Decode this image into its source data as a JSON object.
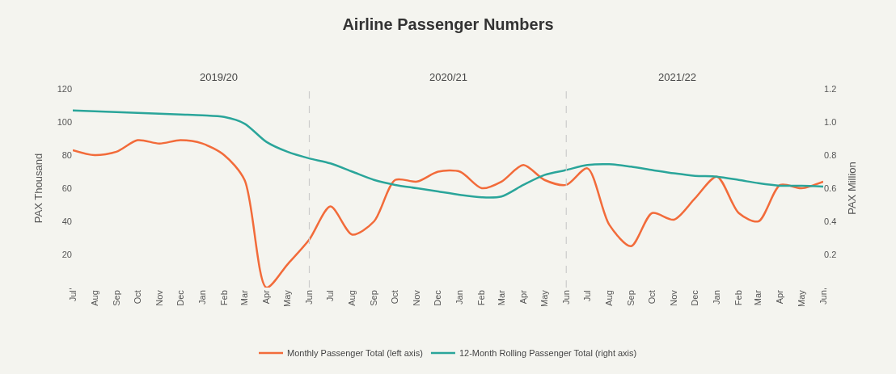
{
  "chart_data": {
    "type": "line",
    "title": "Airline Passenger Numbers",
    "ylabel": "PAX Thousand",
    "y2label": "PAX Million",
    "annotations": [
      "2019/20",
      "2020/21",
      "2021/22"
    ],
    "x": [
      "2019-07",
      "2019-08",
      "2019-09",
      "2019-10",
      "2019-11",
      "2019-12",
      "2020-01",
      "2020-02",
      "2020-03",
      "2020-04",
      "2020-05",
      "2020-06",
      "2020-07",
      "2020-08",
      "2020-09",
      "2020-10",
      "2020-11",
      "2020-12",
      "2021-01",
      "2021-02",
      "2021-03",
      "2021-04",
      "2021-05",
      "2021-06",
      "2021-07",
      "2021-08",
      "2021-09",
      "2021-10",
      "2021-11",
      "2021-12",
      "2022-01",
      "2022-02",
      "2022-03",
      "2022-04",
      "2022-05",
      "2022-06"
    ],
    "series": [
      {
        "name": "Monthly Passenger Total (left axis)",
        "color": "#f26b3a",
        "values": [
          83,
          80,
          82,
          89,
          87,
          89,
          87,
          80,
          65,
          0,
          14,
          29,
          49,
          32,
          40,
          65,
          64,
          70,
          70,
          60,
          64,
          74,
          65,
          62,
          72,
          38,
          25,
          45,
          41,
          54,
          67,
          45,
          40,
          62,
          60,
          64
        ]
      },
      {
        "name": "12-Month Rolling Passenger Total (right axis)",
        "color": "#2aa59a",
        "axis": "y2",
        "values": [
          1.07,
          1.065,
          1.06,
          1.055,
          1.05,
          1.045,
          1.04,
          1.03,
          0.99,
          0.88,
          0.82,
          0.78,
          0.75,
          0.7,
          0.65,
          0.62,
          0.6,
          0.58,
          0.56,
          0.545,
          0.55,
          0.62,
          0.68,
          0.71,
          0.74,
          0.745,
          0.73,
          0.71,
          0.69,
          0.675,
          0.67,
          0.65,
          0.63,
          0.615,
          0.615,
          0.61
        ]
      }
    ],
    "xlim": [
      "2019-07",
      "2022-06"
    ],
    "xticks": [
      {
        "value": "2019-07",
        "label": "Jul"
      },
      {
        "value": "2019-08",
        "label": "Aug"
      },
      {
        "value": "2019-09",
        "label": "Sep"
      },
      {
        "value": "2019-10",
        "label": "Oct"
      },
      {
        "value": "2019-11",
        "label": "Nov"
      },
      {
        "value": "2019-12",
        "label": "Dec"
      },
      {
        "value": "2020-01",
        "label": "Jan"
      },
      {
        "value": "2020-02",
        "label": "Feb"
      },
      {
        "value": "2020-03",
        "label": "Mar"
      },
      {
        "value": "2020-04",
        "label": "Apr"
      },
      {
        "value": "2020-05",
        "label": "May"
      },
      {
        "value": "2020-06",
        "label": "Jun"
      },
      {
        "value": "2020-07",
        "label": "Jul"
      },
      {
        "value": "2020-08",
        "label": "Aug"
      },
      {
        "value": "2020-09",
        "label": "Sep"
      },
      {
        "value": "2020-10",
        "label": "Oct"
      },
      {
        "value": "2020-11",
        "label": "Nov"
      },
      {
        "value": "2020-12",
        "label": "Dec"
      },
      {
        "value": "2021-01",
        "label": "Jan"
      },
      {
        "value": "2021-02",
        "label": "Feb"
      },
      {
        "value": "2021-03",
        "label": "Mar"
      },
      {
        "value": "2021-04",
        "label": "Apr"
      },
      {
        "value": "2021-05",
        "label": "May"
      },
      {
        "value": "2021-06",
        "label": "Jun"
      },
      {
        "value": "2021-07",
        "label": "Jul"
      },
      {
        "value": "2021-08",
        "label": "Aug"
      },
      {
        "value": "2021-09",
        "label": "Sep"
      },
      {
        "value": "2021-10",
        "label": "Oct"
      },
      {
        "value": "2021-11",
        "label": "Nov"
      },
      {
        "value": "2021-12",
        "label": "Dec"
      },
      {
        "value": "2022-01",
        "label": "Jan"
      },
      {
        "value": "2022-02",
        "label": "Feb"
      },
      {
        "value": "2022-03",
        "label": "Mar"
      },
      {
        "value": "2022-04",
        "label": "Apr"
      },
      {
        "value": "2022-05",
        "label": "May"
      },
      {
        "value": "2022-06",
        "label": "Jun"
      }
    ],
    "ylim": [
      0,
      120
    ],
    "yticks": [
      {
        "value": 0,
        "label": "-"
      },
      20,
      40,
      60,
      80,
      100,
      120
    ],
    "y2lim": [
      0,
      1.2
    ],
    "y2ticks": [
      {
        "value": 0,
        "label": "-"
      },
      0.2,
      0.4,
      0.6,
      0.8,
      {
        "value": 1,
        "label": "1.0"
      },
      1.2
    ],
    "ref_lines": [
      {
        "axis": "x",
        "value": "2020-06",
        "color": "#cccccc",
        "line_style": "dashed"
      },
      {
        "axis": "x",
        "value": "2021-06",
        "color": "#cccccc",
        "line_style": "dashed"
      }
    ],
    "grid": false,
    "legend": "bottom",
    "marker": "none",
    "line_style": "solid"
  }
}
